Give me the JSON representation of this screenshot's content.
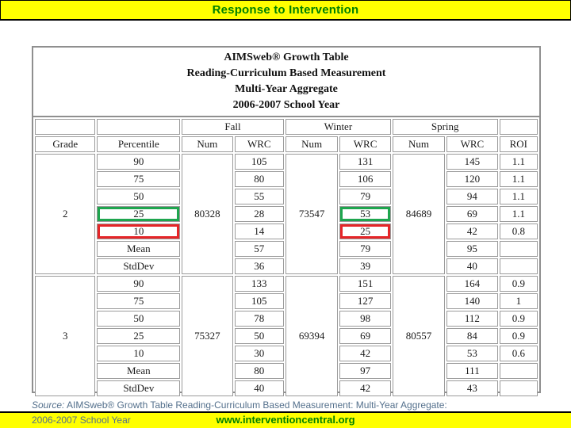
{
  "header": {
    "title": "Response to Intervention",
    "bar_color": "#ffff00",
    "text_color": "#008000"
  },
  "growth_table": {
    "title_lines": [
      "AIMSweb® Growth Table",
      "Reading-Curriculum Based Measurement",
      "Multi-Year Aggregate",
      "2006-2007 School Year"
    ],
    "season_headers": [
      "Fall",
      "Winter",
      "Spring"
    ],
    "column_headers": [
      "Grade",
      "Percentile",
      "Num",
      "WRC",
      "Num",
      "WRC",
      "Num",
      "WRC",
      "ROI"
    ],
    "highlight_colors": {
      "green_bg": "#c9ecd7",
      "green_border": "#1ea54e",
      "red_bg": "#f9c3c6",
      "red_border": "#e52528",
      "stat_row_bg": "#d4d4d4"
    },
    "grades": [
      {
        "grade": "2",
        "num": {
          "fall": "80328",
          "winter": "73547",
          "spring": "84689"
        },
        "rows": [
          {
            "label": "90",
            "fall_wrc": "105",
            "winter_wrc": "131",
            "spring_wrc": "145",
            "roi": "1.1"
          },
          {
            "label": "75",
            "fall_wrc": "80",
            "winter_wrc": "106",
            "spring_wrc": "120",
            "roi": "1.1"
          },
          {
            "label": "50",
            "fall_wrc": "55",
            "winter_wrc": "79",
            "spring_wrc": "94",
            "roi": "1.1"
          },
          {
            "label": "25",
            "fall_wrc": "28",
            "winter_wrc": "53",
            "spring_wrc": "69",
            "roi": "1.1",
            "label_highlight": "green",
            "winter_highlight": "green"
          },
          {
            "label": "10",
            "fall_wrc": "14",
            "winter_wrc": "25",
            "spring_wrc": "42",
            "roi": "0.8",
            "label_highlight": "red",
            "winter_highlight": "red"
          },
          {
            "label": "Mean",
            "fall_wrc": "57",
            "winter_wrc": "79",
            "spring_wrc": "95",
            "roi": "",
            "stat": true
          },
          {
            "label": "StdDev",
            "fall_wrc": "36",
            "winter_wrc": "39",
            "spring_wrc": "40",
            "roi": "",
            "stat": true
          }
        ]
      },
      {
        "grade": "3",
        "num": {
          "fall": "75327",
          "winter": "69394",
          "spring": "80557"
        },
        "rows": [
          {
            "label": "90",
            "fall_wrc": "133",
            "winter_wrc": "151",
            "spring_wrc": "164",
            "roi": "0.9"
          },
          {
            "label": "75",
            "fall_wrc": "105",
            "winter_wrc": "127",
            "spring_wrc": "140",
            "roi": "1"
          },
          {
            "label": "50",
            "fall_wrc": "78",
            "winter_wrc": "98",
            "spring_wrc": "112",
            "roi": "0.9"
          },
          {
            "label": "25",
            "fall_wrc": "50",
            "winter_wrc": "69",
            "spring_wrc": "84",
            "roi": "0.9"
          },
          {
            "label": "10",
            "fall_wrc": "30",
            "winter_wrc": "42",
            "spring_wrc": "53",
            "roi": "0.6"
          },
          {
            "label": "Mean",
            "fall_wrc": "80",
            "winter_wrc": "97",
            "spring_wrc": "111",
            "roi": "",
            "stat": true
          },
          {
            "label": "StdDev",
            "fall_wrc": "40",
            "winter_wrc": "42",
            "spring_wrc": "43",
            "roi": "",
            "stat": true
          }
        ]
      }
    ]
  },
  "source_note": {
    "prefix": "Source:",
    "line1": " AIMSweb® Growth Table Reading-Curriculum Based Measurement: Multi-Year Aggregate:",
    "line2": "2006-2007 School Year"
  },
  "footer": {
    "url": "www.interventioncentral.org",
    "bar_color": "#ffff00",
    "url_color": "#008000"
  }
}
